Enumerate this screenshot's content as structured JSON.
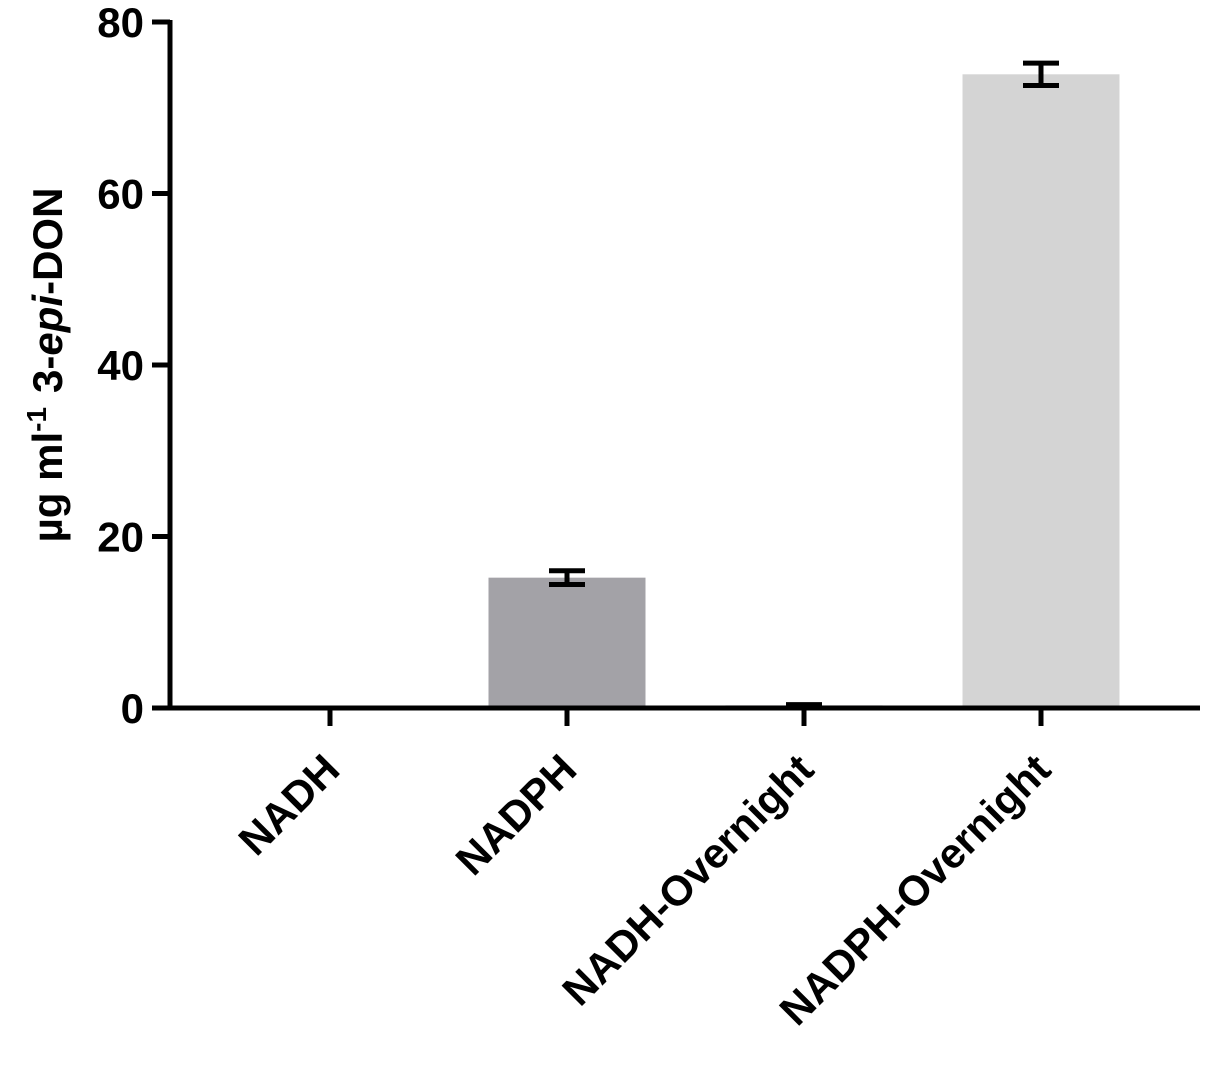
{
  "chart_data": {
    "type": "bar",
    "ylabel": [
      "µg ml",
      "-1",
      "3-",
      "epi",
      "-DON"
    ],
    "categories": [
      "NADH",
      "NADPH",
      "NADH-Overnight",
      "NADPH-Overnight"
    ],
    "values": [
      0,
      15.2,
      0.3,
      73.9
    ],
    "errors": [
      0,
      0.8,
      0.1,
      1.3
    ],
    "colors": [
      "#7f7f85",
      "#a3a2a7",
      "#8c8c90",
      "#d4d4d4"
    ],
    "ylim": [
      0,
      80
    ],
    "yticks": [
      0,
      20,
      40,
      60,
      80
    ]
  }
}
